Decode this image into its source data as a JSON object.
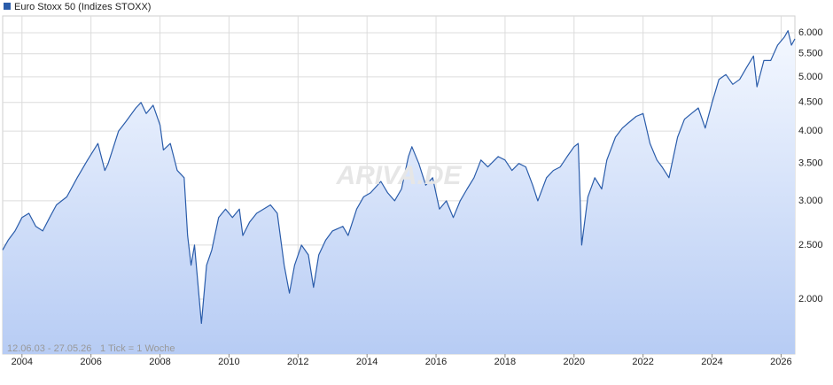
{
  "chart_data": {
    "type": "line",
    "log_scale": true,
    "grid": true,
    "legend": "top-left",
    "date_range": "12.06.03 - 27.05.26",
    "tick_note": "1 Tick = 1 Woche",
    "watermark": "ARIVA.DE",
    "xlim": [
      2003.44,
      2026.4
    ],
    "xticks": [
      2004,
      2006,
      2008,
      2010,
      2012,
      2014,
      2016,
      2018,
      2020,
      2022,
      2024,
      2026
    ],
    "ylim": [
      1595,
      6430
    ],
    "yticks": [
      {
        "value": 2000,
        "label": "2.000"
      },
      {
        "value": 2500,
        "label": "2.500"
      },
      {
        "value": 3000,
        "label": "3.000"
      },
      {
        "value": 3500,
        "label": "3.500"
      },
      {
        "value": 4000,
        "label": "4.000"
      },
      {
        "value": 4500,
        "label": "4.500"
      },
      {
        "value": 5000,
        "label": "5.000"
      },
      {
        "value": 5500,
        "label": "5.500"
      },
      {
        "value": 6000,
        "label": "6.000"
      }
    ],
    "x": [
      2003.44,
      2003.6,
      2003.8,
      2004.0,
      2004.2,
      2004.4,
      2004.6,
      2004.8,
      2005.0,
      2005.3,
      2005.6,
      2005.9,
      2006.2,
      2006.4,
      2006.5,
      2006.8,
      2007.0,
      2007.3,
      2007.45,
      2007.6,
      2007.8,
      2008.0,
      2008.1,
      2008.3,
      2008.5,
      2008.7,
      2008.8,
      2008.9,
      2009.0,
      2009.2,
      2009.35,
      2009.5,
      2009.7,
      2009.9,
      2010.1,
      2010.3,
      2010.4,
      2010.6,
      2010.8,
      2011.0,
      2011.2,
      2011.4,
      2011.6,
      2011.75,
      2011.9,
      2012.1,
      2012.3,
      2012.45,
      2012.6,
      2012.8,
      2013.0,
      2013.3,
      2013.45,
      2013.7,
      2013.9,
      2014.1,
      2014.4,
      2014.6,
      2014.8,
      2015.0,
      2015.2,
      2015.3,
      2015.5,
      2015.7,
      2015.9,
      2016.1,
      2016.3,
      2016.5,
      2016.7,
      2016.9,
      2017.1,
      2017.3,
      2017.5,
      2017.8,
      2018.0,
      2018.2,
      2018.4,
      2018.6,
      2018.8,
      2018.95,
      2019.2,
      2019.4,
      2019.6,
      2019.8,
      2020.0,
      2020.12,
      2020.22,
      2020.4,
      2020.6,
      2020.8,
      2020.95,
      2021.2,
      2021.4,
      2021.6,
      2021.8,
      2022.0,
      2022.2,
      2022.4,
      2022.55,
      2022.75,
      2023.0,
      2023.2,
      2023.4,
      2023.6,
      2023.8,
      2024.0,
      2024.2,
      2024.4,
      2024.6,
      2024.8,
      2025.0,
      2025.2,
      2025.3,
      2025.5,
      2025.7,
      2025.9,
      2026.1,
      2026.2,
      2026.3,
      2026.4
    ],
    "series": [
      {
        "name": "Euro Stoxx 50 (Indizes STOXX)",
        "color": "#2a5caa",
        "values": [
          2450,
          2550,
          2650,
          2800,
          2850,
          2700,
          2650,
          2800,
          2950,
          3050,
          3300,
          3550,
          3800,
          3400,
          3500,
          4000,
          4150,
          4400,
          4500,
          4300,
          4450,
          4100,
          3700,
          3800,
          3400,
          3300,
          2600,
          2300,
          2500,
          1810,
          2300,
          2450,
          2800,
          2900,
          2800,
          2900,
          2600,
          2750,
          2850,
          2900,
          2950,
          2850,
          2300,
          2050,
          2300,
          2500,
          2400,
          2100,
          2400,
          2550,
          2650,
          2700,
          2600,
          2900,
          3050,
          3100,
          3250,
          3100,
          3000,
          3150,
          3600,
          3750,
          3500,
          3200,
          3300,
          2900,
          3000,
          2800,
          3000,
          3150,
          3300,
          3550,
          3450,
          3600,
          3550,
          3400,
          3500,
          3450,
          3200,
          3000,
          3300,
          3400,
          3450,
          3600,
          3750,
          3800,
          2500,
          3050,
          3300,
          3150,
          3550,
          3900,
          4050,
          4150,
          4250,
          4300,
          3800,
          3550,
          3450,
          3300,
          3900,
          4200,
          4300,
          4400,
          4050,
          4500,
          4950,
          5050,
          4850,
          4950,
          5200,
          5450,
          4800,
          5350,
          5350,
          5700,
          5900,
          6050,
          5700,
          5850
        ]
      }
    ]
  }
}
